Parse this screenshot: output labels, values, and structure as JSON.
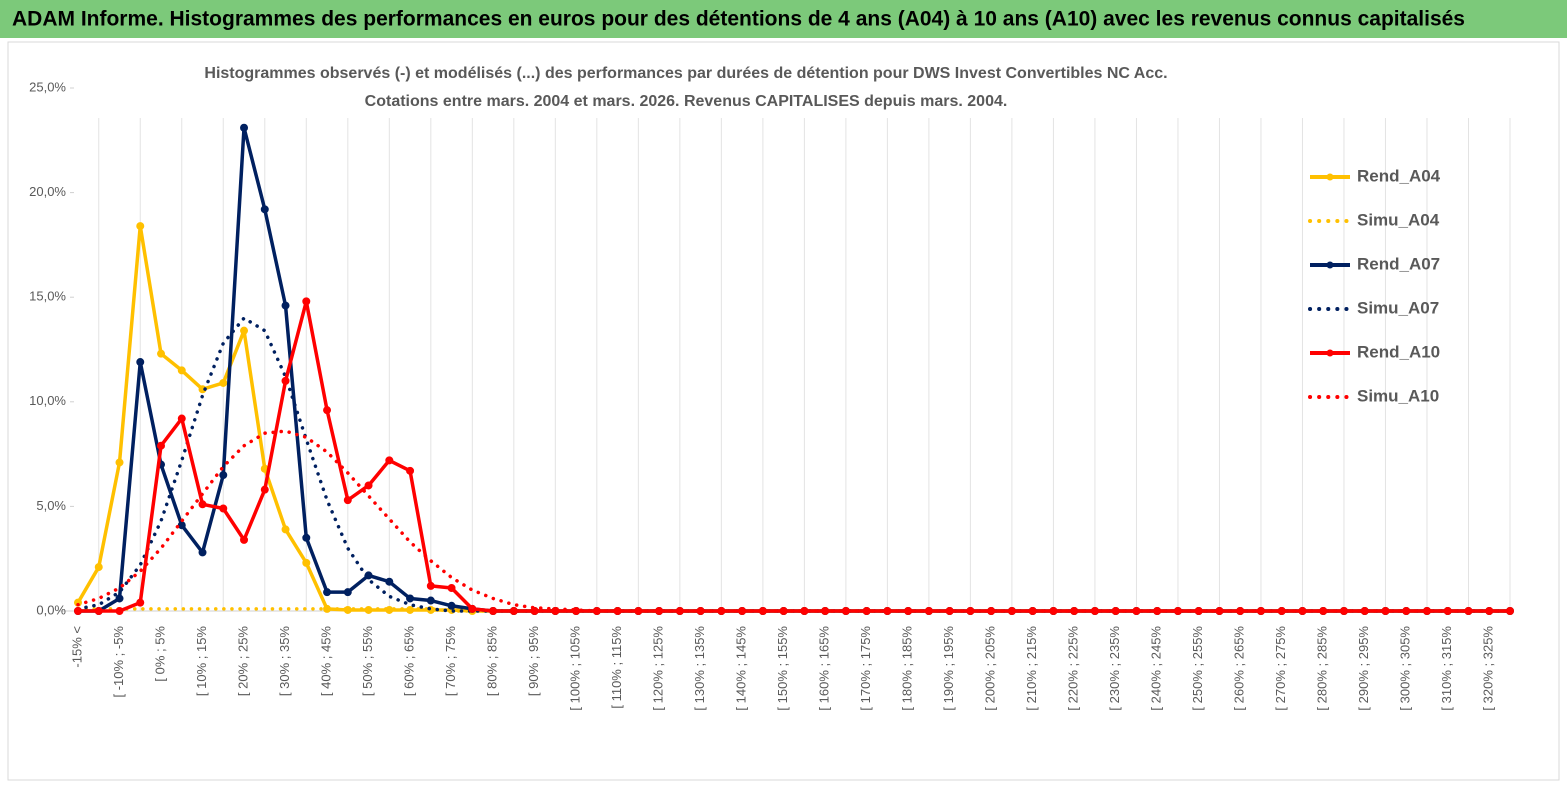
{
  "header": {
    "title": "ADAM Informe. Histogrammes des performances en euros pour des détentions de 4 ans (A04) à 10 ans (A10) avec les revenus connus capitalisés"
  },
  "chart_data": {
    "type": "line",
    "title": [
      "Histogrammes observés (-) et modélisés (...) des performances par durées de détention pour DWS Invest Convertibles NC Acc.",
      "Cotations entre mars. 2004 et mars. 2026. Revenus CAPITALISES depuis mars. 2004."
    ],
    "categories": [
      "-15% <",
      null,
      "[ -10% ; -5%",
      null,
      "[ 0% ; 5%",
      null,
      "[ 10% ; 15%",
      null,
      "[ 20% ; 25%",
      null,
      "[ 30% ; 35%",
      null,
      "[ 40% ; 45%",
      null,
      "[ 50% ; 55%",
      null,
      "[ 60% ; 65%",
      null,
      "[ 70% ; 75%",
      null,
      "[ 80% ; 85%",
      null,
      "[ 90% ; 95%",
      null,
      "[ 100% ; 105%",
      null,
      "[ 110% ; 115%",
      null,
      "[ 120% ; 125%",
      null,
      "[ 130% ; 135%",
      null,
      "[ 140% ; 145%",
      null,
      "[ 150% ; 155%",
      null,
      "[ 160% ; 165%",
      null,
      "[ 170% ; 175%",
      null,
      "[ 180% ; 185%",
      null,
      "[ 190% ; 195%",
      null,
      "[ 200% ; 205%",
      null,
      "[ 210% ; 215%",
      null,
      "[ 220% ; 225%",
      null,
      "[ 230% ; 235%",
      null,
      "[ 240% ; 245%",
      null,
      "[ 250% ; 255%",
      null,
      "[ 260% ; 265%",
      null,
      "[ 270% ; 275%",
      null,
      "[ 280% ; 285%",
      null,
      "[ 290% ; 295%",
      null,
      "[ 300% ; 305%",
      null,
      "[ 310% ; 315%",
      null,
      "[ 320% ; 325%",
      null
    ],
    "series": [
      {
        "name": "Rend_A04",
        "color": "#ffc000",
        "line_style": "solid",
        "markers": true,
        "values": [
          0.4,
          2.1,
          7.1,
          18.4,
          12.3,
          11.5,
          10.6,
          10.9,
          13.4,
          6.8,
          3.9,
          2.3,
          0.1,
          0.05,
          0.05,
          0.05,
          0.05,
          0.05,
          0.05,
          0,
          0,
          0,
          0,
          0,
          0,
          0,
          0,
          0,
          0,
          0,
          0,
          0,
          0,
          0,
          0,
          0,
          0,
          0,
          0,
          0,
          0,
          0,
          0,
          0,
          0,
          0,
          0,
          0,
          0,
          0,
          0,
          0,
          0,
          0,
          0,
          0,
          0,
          0,
          0,
          0,
          0,
          0,
          0,
          0,
          0,
          0,
          0,
          0,
          0,
          0
        ]
      },
      {
        "name": "Simu_A04",
        "color": "#ffc000",
        "line_style": "dotted",
        "markers": false,
        "values": [
          0.1,
          0.1,
          0.1,
          0.1,
          0.1,
          0.1,
          0.1,
          0.1,
          0.1,
          0.1,
          0.1,
          0.1,
          0.1,
          0.1,
          0.1,
          0.1,
          0.1,
          0.1,
          0,
          0,
          0,
          0,
          0,
          0,
          0,
          0,
          0,
          0,
          0,
          0,
          0,
          0,
          0,
          0,
          0,
          0,
          0,
          0,
          0,
          0,
          0,
          0,
          0,
          0,
          0,
          0,
          0,
          0,
          0,
          0,
          0,
          0,
          0,
          0,
          0,
          0,
          0,
          0,
          0,
          0,
          0,
          0,
          0,
          0,
          0,
          0,
          0,
          0,
          0,
          0
        ]
      },
      {
        "name": "Rend_A07",
        "color": "#002060",
        "line_style": "solid",
        "markers": true,
        "values": [
          0,
          0,
          0.6,
          11.9,
          7.0,
          4.1,
          2.8,
          6.5,
          23.1,
          19.2,
          14.6,
          3.5,
          0.9,
          0.9,
          1.7,
          1.4,
          0.6,
          0.5,
          0.25,
          0.1,
          0,
          0,
          0,
          0,
          0,
          0,
          0,
          0,
          0,
          0,
          0,
          0,
          0,
          0,
          0,
          0,
          0,
          0,
          0,
          0,
          0,
          0,
          0,
          0,
          0,
          0,
          0,
          0,
          0,
          0,
          0,
          0,
          0,
          0,
          0,
          0,
          0,
          0,
          0,
          0,
          0,
          0,
          0,
          0,
          0,
          0,
          0,
          0,
          0,
          0
        ]
      },
      {
        "name": "Simu_A07",
        "color": "#002060",
        "line_style": "dotted",
        "markers": false,
        "values": [
          0.1,
          0.3,
          0.9,
          2.2,
          4.3,
          7.2,
          10.3,
          12.8,
          14.0,
          13.4,
          11.2,
          8.2,
          5.3,
          3.0,
          1.5,
          0.7,
          0.3,
          0.1,
          0,
          0,
          0,
          0,
          0,
          0,
          0,
          0,
          0,
          0,
          0,
          0,
          0,
          0,
          0,
          0,
          0,
          0,
          0,
          0,
          0,
          0,
          0,
          0,
          0,
          0,
          0,
          0,
          0,
          0,
          0,
          0,
          0,
          0,
          0,
          0,
          0,
          0,
          0,
          0,
          0,
          0,
          0,
          0,
          0,
          0,
          0,
          0,
          0,
          0,
          0,
          0
        ]
      },
      {
        "name": "Rend_A10",
        "color": "#ff0000",
        "line_style": "solid",
        "markers": true,
        "values": [
          0,
          0,
          0,
          0.4,
          7.9,
          9.2,
          5.1,
          4.9,
          3.4,
          5.8,
          11.0,
          14.8,
          9.6,
          5.3,
          6.0,
          7.2,
          6.7,
          1.2,
          1.1,
          0.1,
          0,
          0,
          0,
          0,
          0,
          0,
          0,
          0,
          0,
          0,
          0,
          0,
          0,
          0,
          0,
          0,
          0,
          0,
          0,
          0,
          0,
          0,
          0,
          0,
          0,
          0,
          0,
          0,
          0,
          0,
          0,
          0,
          0,
          0,
          0,
          0,
          0,
          0,
          0,
          0,
          0,
          0,
          0,
          0,
          0,
          0,
          0,
          0,
          0,
          0
        ]
      },
      {
        "name": "Simu_A10",
        "color": "#ff0000",
        "line_style": "dotted",
        "markers": false,
        "values": [
          0.3,
          0.6,
          1.1,
          1.9,
          3.0,
          4.3,
          5.6,
          6.9,
          7.9,
          8.5,
          8.6,
          8.3,
          7.6,
          6.6,
          5.5,
          4.4,
          3.3,
          2.4,
          1.6,
          1.0,
          0.6,
          0.3,
          0.15,
          0.1,
          0.05,
          0,
          0,
          0,
          0,
          0,
          0,
          0,
          0,
          0,
          0,
          0,
          0,
          0,
          0,
          0,
          0,
          0,
          0,
          0,
          0,
          0,
          0,
          0,
          0,
          0,
          0,
          0,
          0,
          0,
          0,
          0,
          0,
          0,
          0,
          0,
          0,
          0,
          0,
          0,
          0,
          0,
          0,
          0,
          0,
          0
        ]
      }
    ],
    "ylim": [
      0,
      25
    ],
    "yticks": [
      {
        "value": 0,
        "label": "0,0%"
      },
      {
        "value": 5,
        "label": "5,0%"
      },
      {
        "value": 10,
        "label": "10,0%"
      },
      {
        "value": 15,
        "label": "15,0%"
      },
      {
        "value": 20,
        "label": "20,0%"
      },
      {
        "value": 25,
        "label": "25,0%"
      }
    ],
    "grid": "vertical",
    "legend": "right"
  }
}
